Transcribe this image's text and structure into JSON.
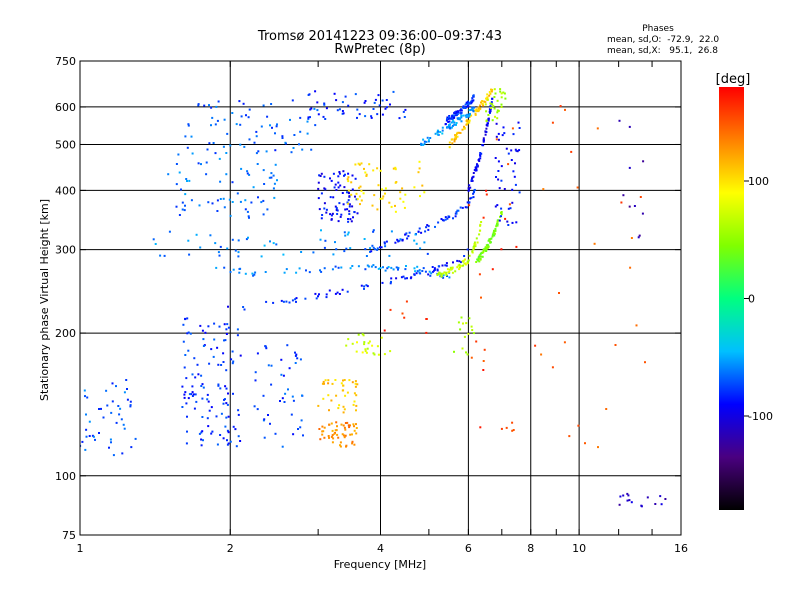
{
  "chart_data": {
    "type": "scatter",
    "title": "Tromsø 20141223 09:36:00–09:37:43",
    "subtitle": "RwPretec (8p)",
    "xlabel": "Frequency [MHz]",
    "ylabel": "Stationary phase Virtual Height [km]",
    "x_scale": "log",
    "y_scale": "log",
    "xlim": [
      1,
      16
    ],
    "ylim": [
      75,
      750
    ],
    "x_ticks": [
      1,
      2,
      4,
      6,
      8,
      10,
      16
    ],
    "x_tick_labels": [
      "1",
      "2",
      "4",
      "6",
      "8",
      "10",
      "16"
    ],
    "x_minor_ticks": [
      3,
      5,
      7,
      9,
      12,
      14
    ],
    "x_gridlines": [
      2,
      4,
      6,
      8,
      10
    ],
    "y_ticks": [
      75,
      100,
      200,
      300,
      400,
      500,
      600,
      750
    ],
    "y_tick_labels": [
      "75",
      "100",
      "200",
      "300",
      "400",
      "500",
      "600",
      "750"
    ],
    "y_gridlines": [
      100,
      200,
      300,
      400,
      500,
      600
    ],
    "grid": true,
    "stats": {
      "heading": "Phases",
      "line_o": "mean, sd,O:  -72.9,  22.0",
      "line_x": "mean, sd,X:   95.1,  26.8"
    },
    "colorbar": {
      "label": "[deg]",
      "range": [
        -180,
        180
      ],
      "ticks": [
        100,
        0,
        -100
      ],
      "tick_labels": [
        "100",
        "0",
        "-100"
      ],
      "colormap": "rainbow",
      "stops": [
        "#000000",
        "#4a0080",
        "#0000ff",
        "#00c0ff",
        "#00ff80",
        "#80ff00",
        "#ffff00",
        "#ff8000",
        "#ff0000"
      ]
    },
    "traces": [
      {
        "mode": "line",
        "phase": -85,
        "x_range": [
          1.6,
          6.0
        ],
        "points": [
          [
            1.6,
            215
          ],
          [
            2.0,
            225
          ],
          [
            2.5,
            232
          ],
          [
            3.0,
            240
          ],
          [
            4.0,
            255
          ],
          [
            5.0,
            270
          ],
          [
            5.8,
            285
          ],
          [
            6.0,
            300
          ]
        ]
      },
      {
        "mode": "line",
        "phase": -80,
        "x_range": [
          3.8,
          6.2
        ],
        "points": [
          [
            3.8,
            300
          ],
          [
            4.5,
            320
          ],
          [
            5.0,
            335
          ],
          [
            5.5,
            350
          ],
          [
            6.0,
            375
          ],
          [
            6.2,
            400
          ]
        ]
      },
      {
        "mode": "line",
        "phase": -95,
        "x_range": [
          6.0,
          6.7
        ],
        "points": [
          [
            6.0,
            400
          ],
          [
            6.3,
            460
          ],
          [
            6.5,
            530
          ],
          [
            6.7,
            620
          ]
        ]
      },
      {
        "mode": "line",
        "phase": -80,
        "x_range": [
          5.4,
          6.2
        ],
        "points": [
          [
            5.4,
            560
          ],
          [
            5.8,
            590
          ],
          [
            6.1,
            620
          ],
          [
            6.2,
            640
          ]
        ]
      },
      {
        "mode": "line",
        "phase": -60,
        "x_range": [
          1.8,
          5.6
        ],
        "points": [
          [
            1.8,
            275
          ],
          [
            2.2,
            268
          ],
          [
            2.8,
            270
          ],
          [
            3.5,
            275
          ],
          [
            4.2,
            275
          ],
          [
            4.8,
            272
          ],
          [
            5.4,
            262
          ],
          [
            5.7,
            270
          ]
        ]
      },
      {
        "mode": "line",
        "phase": 70,
        "x_range": [
          5.2,
          6.4
        ],
        "points": [
          [
            5.2,
            265
          ],
          [
            5.6,
            272
          ],
          [
            6.0,
            285
          ],
          [
            6.3,
            320
          ],
          [
            6.4,
            360
          ]
        ]
      },
      {
        "mode": "line",
        "phase": 40,
        "x_range": [
          6.2,
          7.0
        ],
        "points": [
          [
            6.2,
            280
          ],
          [
            6.5,
            300
          ],
          [
            6.8,
            330
          ],
          [
            7.0,
            360
          ]
        ]
      },
      {
        "mode": "line",
        "phase": 110,
        "x_range": [
          5.5,
          6.7
        ],
        "points": [
          [
            5.5,
            500
          ],
          [
            6.0,
            560
          ],
          [
            6.4,
            610
          ],
          [
            6.7,
            650
          ]
        ]
      },
      {
        "mode": "line",
        "phase": -55,
        "x_range": [
          4.8,
          6.2
        ],
        "points": [
          [
            4.8,
            500
          ],
          [
            5.4,
            540
          ],
          [
            6.0,
            580
          ],
          [
            6.2,
            600
          ]
        ]
      },
      {
        "mode": "band",
        "phase": -70,
        "x_range": [
          1.0,
          1.3
        ],
        "y_range": [
          110,
          160
        ],
        "count": 45
      },
      {
        "mode": "band",
        "phase": -80,
        "x_range": [
          1.6,
          2.1
        ],
        "y_range": [
          150,
          210
        ],
        "count": 60
      },
      {
        "mode": "band",
        "phase": -80,
        "x_range": [
          1.6,
          2.1
        ],
        "y_range": [
          115,
          150
        ],
        "count": 60
      },
      {
        "mode": "band",
        "phase": -75,
        "x_range": [
          2.2,
          2.8
        ],
        "y_range": [
          115,
          190
        ],
        "count": 45
      },
      {
        "mode": "band",
        "phase": 130,
        "x_range": [
          3.0,
          3.6
        ],
        "y_range": [
          115,
          130
        ],
        "count": 55
      },
      {
        "mode": "band",
        "phase": 110,
        "x_range": [
          3.0,
          3.6
        ],
        "y_range": [
          135,
          160
        ],
        "count": 40
      },
      {
        "mode": "band",
        "phase": 75,
        "x_range": [
          3.4,
          4.2
        ],
        "y_range": [
          180,
          200
        ],
        "count": 25
      },
      {
        "mode": "band",
        "phase": -90,
        "x_range": [
          3.0,
          3.6
        ],
        "y_range": [
          340,
          440
        ],
        "count": 80
      },
      {
        "mode": "band",
        "phase": 100,
        "x_range": [
          3.4,
          5.0
        ],
        "y_range": [
          360,
          460
        ],
        "count": 60
      },
      {
        "mode": "band",
        "phase": -65,
        "x_range": [
          1.5,
          2.5
        ],
        "y_range": [
          350,
          480
        ],
        "count": 70
      },
      {
        "mode": "band",
        "phase": -70,
        "x_range": [
          1.6,
          3.0
        ],
        "y_range": [
          480,
          620
        ],
        "count": 70
      },
      {
        "mode": "band",
        "phase": -80,
        "x_range": [
          2.8,
          4.6
        ],
        "y_range": [
          560,
          650
        ],
        "count": 50
      },
      {
        "mode": "band",
        "phase": -60,
        "x_range": [
          1.4,
          5.0
        ],
        "y_range": [
          290,
          330
        ],
        "count": 60
      },
      {
        "mode": "band",
        "phase": 160,
        "x_range": [
          6.0,
          7.5
        ],
        "y_range": [
          120,
          620
        ],
        "count": 25
      },
      {
        "mode": "band",
        "phase": -90,
        "x_range": [
          6.8,
          7.6
        ],
        "y_range": [
          330,
          560
        ],
        "count": 45
      },
      {
        "mode": "band",
        "phase": 60,
        "x_range": [
          6.5,
          7.2
        ],
        "y_range": [
          560,
          660
        ],
        "count": 30
      },
      {
        "mode": "band",
        "phase": -110,
        "x_range": [
          12.0,
          15.0
        ],
        "y_range": [
          86,
          92
        ],
        "count": 15
      },
      {
        "mode": "band",
        "phase": 150,
        "x_range": [
          8.0,
          14.0
        ],
        "y_range": [
          100,
          620
        ],
        "count": 25
      },
      {
        "mode": "band",
        "phase": -120,
        "x_range": [
          12.0,
          13.5
        ],
        "y_range": [
          300,
          620
        ],
        "count": 10
      },
      {
        "mode": "band",
        "phase": 60,
        "x_range": [
          5.6,
          6.2
        ],
        "y_range": [
          180,
          220
        ],
        "count": 15
      },
      {
        "mode": "band",
        "phase": 160,
        "x_range": [
          4.0,
          5.0
        ],
        "y_range": [
          200,
          240
        ],
        "count": 8
      }
    ]
  }
}
